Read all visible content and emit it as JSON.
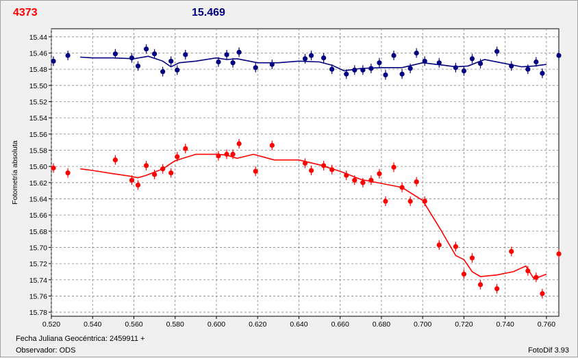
{
  "header": {
    "left_value": "4373",
    "right_value": "15.469"
  },
  "footer": {
    "date_label": "Fecha Juliana Geocéntrica: 2459911 +",
    "observer_label": "Observador: ODS",
    "version_label": "FotoDif 3.93"
  },
  "colors": {
    "comparison": "#000080",
    "target": "#ff0000",
    "grid": "#808080",
    "plot_bg": "#ffffff"
  },
  "chart_data": {
    "type": "scatter",
    "ylabel": "Fotometría absoluta",
    "xlabel": "Fecha Juliana Geocéntrica: 2459911 +",
    "xlim": [
      0.52,
      0.766
    ],
    "ylim": [
      15.43,
      15.785
    ],
    "y_inverted": true,
    "grid": true,
    "x_ticks": [
      "0.520",
      "0.540",
      "0.560",
      "0.580",
      "0.600",
      "0.620",
      "0.640",
      "0.660",
      "0.680",
      "0.700",
      "0.720",
      "0.740",
      "0.760"
    ],
    "y_ticks": [
      "15.44",
      "15.46",
      "15.48",
      "15.50",
      "15.52",
      "15.54",
      "15.56",
      "15.58",
      "15.60",
      "15.62",
      "15.64",
      "15.66",
      "15.68",
      "15.70",
      "15.72",
      "15.74",
      "15.76",
      "15.78"
    ],
    "series": [
      {
        "color": "#000080",
        "points": [
          [
            0.521,
            15.47
          ],
          [
            0.528,
            15.463
          ],
          [
            0.551,
            15.461
          ],
          [
            0.559,
            15.466
          ],
          [
            0.562,
            15.476
          ],
          [
            0.566,
            15.455
          ],
          [
            0.57,
            15.461
          ],
          [
            0.574,
            15.483
          ],
          [
            0.578,
            15.47
          ],
          [
            0.581,
            15.481
          ],
          [
            0.585,
            15.462
          ],
          [
            0.601,
            15.471
          ],
          [
            0.605,
            15.462
          ],
          [
            0.608,
            15.472
          ],
          [
            0.611,
            15.459
          ],
          [
            0.619,
            15.478
          ],
          [
            0.627,
            15.474
          ],
          [
            0.643,
            15.467
          ],
          [
            0.646,
            15.463
          ],
          [
            0.652,
            15.466
          ],
          [
            0.656,
            15.48
          ],
          [
            0.663,
            15.486
          ],
          [
            0.667,
            15.481
          ],
          [
            0.671,
            15.481
          ],
          [
            0.675,
            15.479
          ],
          [
            0.679,
            15.472
          ],
          [
            0.682,
            15.487
          ],
          [
            0.686,
            15.463
          ],
          [
            0.69,
            15.486
          ],
          [
            0.694,
            15.479
          ],
          [
            0.697,
            15.46
          ],
          [
            0.701,
            15.47
          ],
          [
            0.708,
            15.472
          ],
          [
            0.716,
            15.478
          ],
          [
            0.72,
            15.482
          ],
          [
            0.724,
            15.467
          ],
          [
            0.728,
            15.473
          ],
          [
            0.736,
            15.458
          ],
          [
            0.743,
            15.476
          ],
          [
            0.751,
            15.48
          ],
          [
            0.755,
            15.471
          ],
          [
            0.758,
            15.485
          ],
          [
            0.766,
            15.463
          ]
        ],
        "trend": [
          [
            0.534,
            15.465
          ],
          [
            0.54,
            15.466
          ],
          [
            0.55,
            15.466
          ],
          [
            0.56,
            15.467
          ],
          [
            0.567,
            15.464
          ],
          [
            0.574,
            15.47
          ],
          [
            0.578,
            15.477
          ],
          [
            0.582,
            15.472
          ],
          [
            0.59,
            15.47
          ],
          [
            0.6,
            15.466
          ],
          [
            0.605,
            15.468
          ],
          [
            0.61,
            15.467
          ],
          [
            0.62,
            15.472
          ],
          [
            0.63,
            15.472
          ],
          [
            0.64,
            15.47
          ],
          [
            0.65,
            15.471
          ],
          [
            0.656,
            15.475
          ],
          [
            0.662,
            15.482
          ],
          [
            0.67,
            15.479
          ],
          [
            0.68,
            15.478
          ],
          [
            0.69,
            15.478
          ],
          [
            0.7,
            15.472
          ],
          [
            0.71,
            15.475
          ],
          [
            0.716,
            15.477
          ],
          [
            0.722,
            15.476
          ],
          [
            0.73,
            15.468
          ],
          [
            0.738,
            15.472
          ],
          [
            0.748,
            15.477
          ],
          [
            0.754,
            15.476
          ],
          [
            0.76,
            15.474
          ]
        ]
      },
      {
        "color": "#ff0000",
        "points": [
          [
            0.521,
            15.602
          ],
          [
            0.528,
            15.608
          ],
          [
            0.551,
            15.592
          ],
          [
            0.559,
            15.617
          ],
          [
            0.562,
            15.623
          ],
          [
            0.566,
            15.599
          ],
          [
            0.57,
            15.61
          ],
          [
            0.574,
            15.603
          ],
          [
            0.578,
            15.608
          ],
          [
            0.581,
            15.588
          ],
          [
            0.585,
            15.578
          ],
          [
            0.601,
            15.587
          ],
          [
            0.605,
            15.585
          ],
          [
            0.608,
            15.585
          ],
          [
            0.611,
            15.572
          ],
          [
            0.619,
            15.606
          ],
          [
            0.627,
            15.574
          ],
          [
            0.643,
            15.596
          ],
          [
            0.646,
            15.605
          ],
          [
            0.652,
            15.599
          ],
          [
            0.656,
            15.604
          ],
          [
            0.663,
            15.611
          ],
          [
            0.667,
            15.617
          ],
          [
            0.671,
            15.62
          ],
          [
            0.675,
            15.617
          ],
          [
            0.679,
            15.609
          ],
          [
            0.682,
            15.643
          ],
          [
            0.686,
            15.601
          ],
          [
            0.69,
            15.626
          ],
          [
            0.694,
            15.643
          ],
          [
            0.697,
            15.619
          ],
          [
            0.701,
            15.643
          ],
          [
            0.708,
            15.697
          ],
          [
            0.716,
            15.699
          ],
          [
            0.72,
            15.733
          ],
          [
            0.724,
            15.713
          ],
          [
            0.728,
            15.746
          ],
          [
            0.736,
            15.751
          ],
          [
            0.743,
            15.705
          ],
          [
            0.751,
            15.729
          ],
          [
            0.755,
            15.737
          ],
          [
            0.758,
            15.757
          ],
          [
            0.766,
            15.708
          ]
        ],
        "trend": [
          [
            0.534,
            15.603
          ],
          [
            0.54,
            15.605
          ],
          [
            0.55,
            15.609
          ],
          [
            0.558,
            15.612
          ],
          [
            0.562,
            15.614
          ],
          [
            0.566,
            15.611
          ],
          [
            0.574,
            15.603
          ],
          [
            0.58,
            15.593
          ],
          [
            0.59,
            15.585
          ],
          [
            0.6,
            15.585
          ],
          [
            0.605,
            15.586
          ],
          [
            0.61,
            15.59
          ],
          [
            0.618,
            15.585
          ],
          [
            0.628,
            15.592
          ],
          [
            0.64,
            15.592
          ],
          [
            0.65,
            15.598
          ],
          [
            0.66,
            15.606
          ],
          [
            0.67,
            15.616
          ],
          [
            0.68,
            15.621
          ],
          [
            0.69,
            15.626
          ],
          [
            0.7,
            15.642
          ],
          [
            0.708,
            15.675
          ],
          [
            0.716,
            15.71
          ],
          [
            0.72,
            15.715
          ],
          [
            0.724,
            15.73
          ],
          [
            0.728,
            15.736
          ],
          [
            0.736,
            15.734
          ],
          [
            0.744,
            15.73
          ],
          [
            0.75,
            15.723
          ],
          [
            0.754,
            15.739
          ],
          [
            0.76,
            15.733
          ]
        ]
      }
    ]
  }
}
